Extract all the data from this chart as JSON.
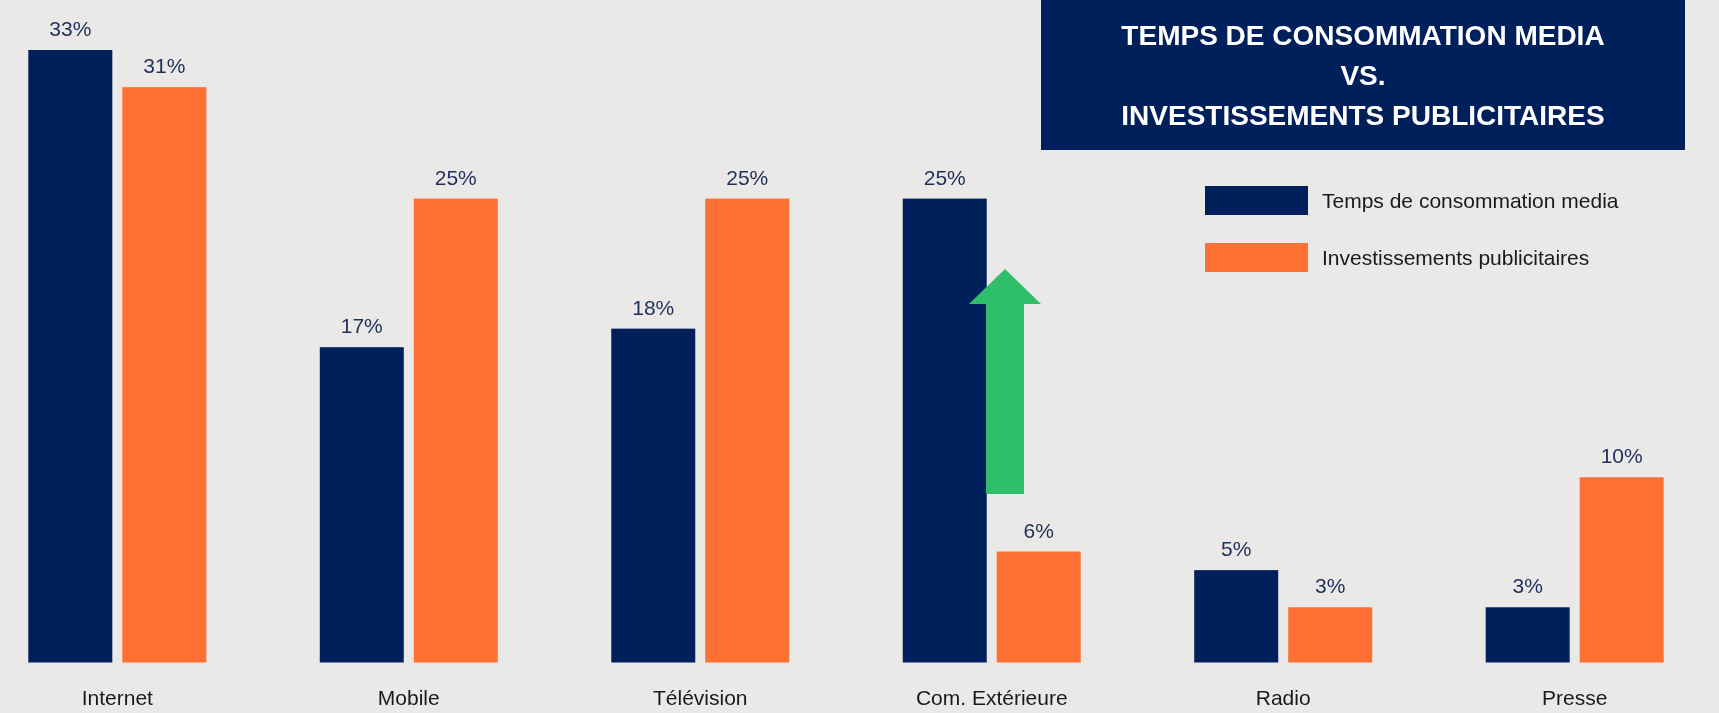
{
  "chart_data": {
    "type": "bar",
    "title": "TEMPS DE CONSOMMATION MEDIA\nVS.\nINVESTISSEMENTS  PUBLICITAIRES",
    "categories": [
      "Internet",
      "Mobile",
      "Télévision",
      "Com. Extérieure",
      "Radio",
      "Presse"
    ],
    "series": [
      {
        "name": "Temps de consommation media",
        "color": "#00205b",
        "values": [
          33,
          17,
          18,
          25,
          5,
          3
        ],
        "value_labels": [
          "33%",
          "17%",
          "18%",
          "25%",
          "5%",
          "3%"
        ]
      },
      {
        "name": "Investissements publicitaires",
        "color": "#ff7034",
        "values": [
          31,
          25,
          25,
          6,
          3,
          10
        ],
        "value_labels": [
          "31%",
          "25%",
          "25%",
          "6%",
          "3%",
          "10%"
        ]
      }
    ],
    "legend": "top right"
  }
}
